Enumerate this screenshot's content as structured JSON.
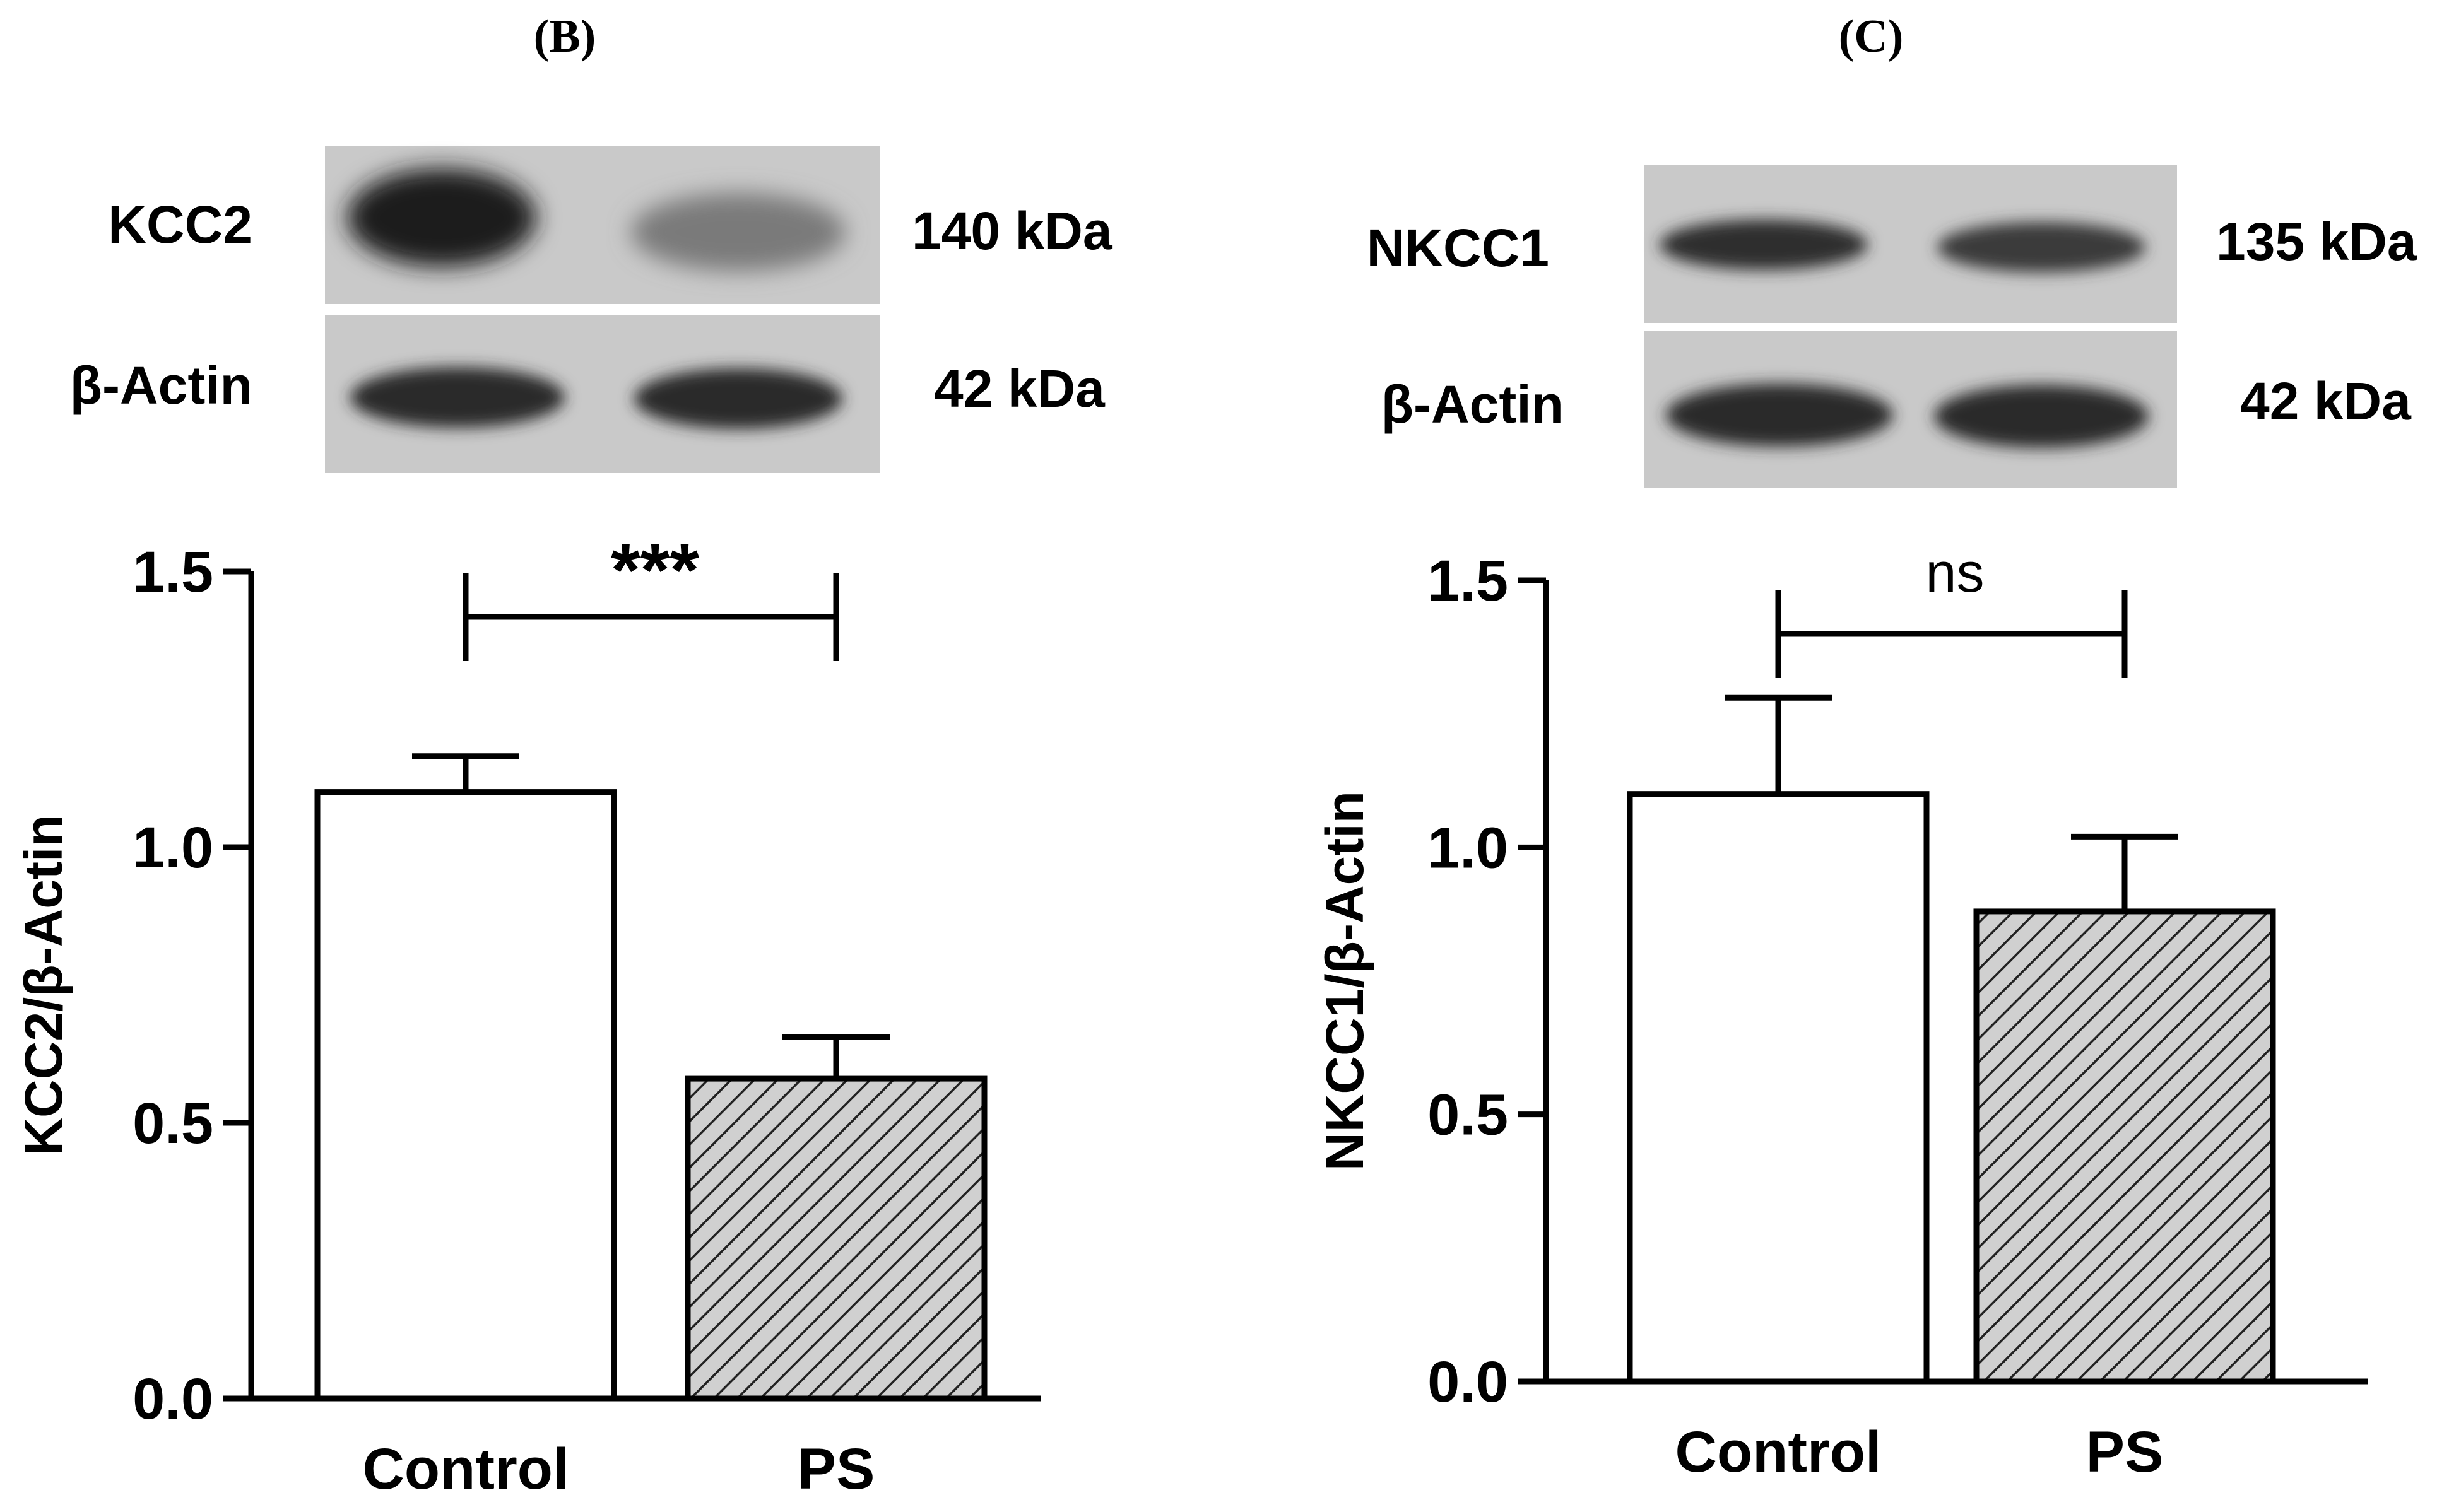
{
  "colors": {
    "stroke": "#000000",
    "control_fill": "#ffffff",
    "ps_fill": "#d0d0d0",
    "hatch": "#222222"
  },
  "chart_data": [
    {
      "panel": "(B)",
      "type": "bar",
      "title": "(B)",
      "categories": [
        "Control",
        "PS"
      ],
      "values": [
        1.1,
        0.58
      ],
      "errors": [
        0.065,
        0.075
      ],
      "ylabel": "KCC2/β-Actin",
      "xlabel": "",
      "ylim": [
        0,
        1.5
      ],
      "yticks": [
        "0.0",
        "0.5",
        "1.0",
        "1.5"
      ],
      "significance": "***",
      "blot": {
        "target_label": "KCC2",
        "target_kda": "140 kDa",
        "loading_label": "β-Actin",
        "loading_kda": "42 kDa"
      }
    },
    {
      "panel": "(C)",
      "type": "bar",
      "title": "(C)",
      "categories": [
        "Control",
        "PS"
      ],
      "values": [
        1.1,
        0.88
      ],
      "errors": [
        0.18,
        0.14
      ],
      "ylabel": "NKCC1/β-Actin",
      "xlabel": "",
      "ylim": [
        0,
        1.5
      ],
      "yticks": [
        "0.0",
        "0.5",
        "1.0",
        "1.5"
      ],
      "significance": "ns",
      "blot": {
        "target_label": "NKCC1",
        "target_kda": "135 kDa",
        "loading_label": "β-Actin",
        "loading_kda": "42 kDa"
      }
    }
  ]
}
